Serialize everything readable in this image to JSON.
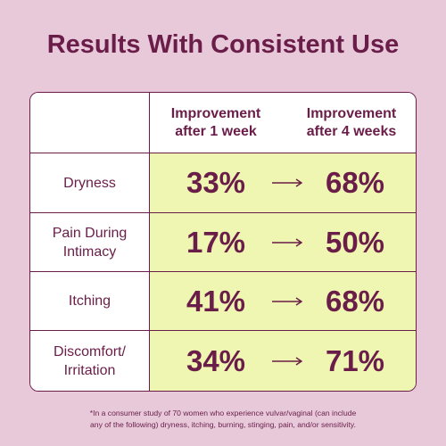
{
  "title": "Results With Consistent Use",
  "table": {
    "header": [
      [
        "Improvement",
        "after 1 week"
      ],
      [
        "Improvement",
        "after 4 weeks"
      ]
    ],
    "rows": [
      {
        "label": [
          "Dryness"
        ],
        "week1": "33%",
        "week4": "68%"
      },
      {
        "label": [
          "Pain During",
          "Intimacy"
        ],
        "week1": "17%",
        "week4": "50%"
      },
      {
        "label": [
          "Itching"
        ],
        "week1": "41%",
        "week4": "68%"
      },
      {
        "label": [
          "Discomfort/",
          "Irritation"
        ],
        "week1": "34%",
        "week4": "71%"
      }
    ]
  },
  "footnote": [
    "*In a consumer study of 70 women who experience vulvar/vaginal (can include",
    "any of the following) dryness, itching, burning, stinging, pain, and/or sensitivity."
  ]
}
